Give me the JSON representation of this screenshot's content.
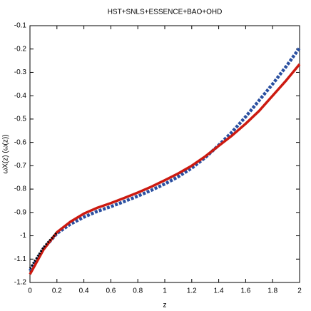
{
  "chart_data": {
    "type": "line",
    "title": "HST+SNLS+ESSENCE+BAO+OHD",
    "xlabel": "z",
    "ylabel": "ωX(z) (ω(z))",
    "x": [
      0,
      0.1,
      0.2,
      0.3,
      0.4,
      0.5,
      0.6,
      0.7,
      0.8,
      0.9,
      1.0,
      1.1,
      1.2,
      1.3,
      1.4,
      1.5,
      1.6,
      1.7,
      1.8,
      1.9,
      2.0
    ],
    "series": [
      {
        "color": "#2a4fa0",
        "style": "dashed",
        "values": [
          -1.15,
          -1.055,
          -0.99,
          -0.95,
          -0.92,
          -0.895,
          -0.875,
          -0.853,
          -0.83,
          -0.805,
          -0.778,
          -0.747,
          -0.71,
          -0.665,
          -0.612,
          -0.555,
          -0.49,
          -0.42,
          -0.35,
          -0.275,
          -0.195
        ]
      },
      {
        "color": "#cc1a10",
        "style": "solid",
        "values": [
          -1.165,
          -1.06,
          -0.985,
          -0.94,
          -0.905,
          -0.88,
          -0.86,
          -0.838,
          -0.815,
          -0.79,
          -0.762,
          -0.733,
          -0.7,
          -0.66,
          -0.615,
          -0.57,
          -0.52,
          -0.465,
          -0.4,
          -0.335,
          -0.265
        ]
      },
      {
        "color": "#000000",
        "style": "dotted",
        "values": [
          -1.14,
          -1.05,
          -0.985,
          null,
          null,
          null,
          null,
          null,
          null,
          null,
          null,
          null,
          null,
          null,
          null,
          null,
          null,
          null,
          null,
          null,
          null
        ]
      }
    ],
    "xlim": [
      0,
      2
    ],
    "xticks": [
      0,
      0.2,
      0.4,
      0.6,
      0.8,
      1,
      1.2,
      1.4,
      1.6,
      1.8,
      2
    ],
    "ylim": [
      -1.2,
      -0.1
    ],
    "yticks": [
      -1.2,
      -1.1,
      -1,
      -0.9,
      -0.8,
      -0.7,
      -0.6,
      -0.5,
      -0.4,
      -0.3,
      -0.2,
      -0.1
    ]
  }
}
